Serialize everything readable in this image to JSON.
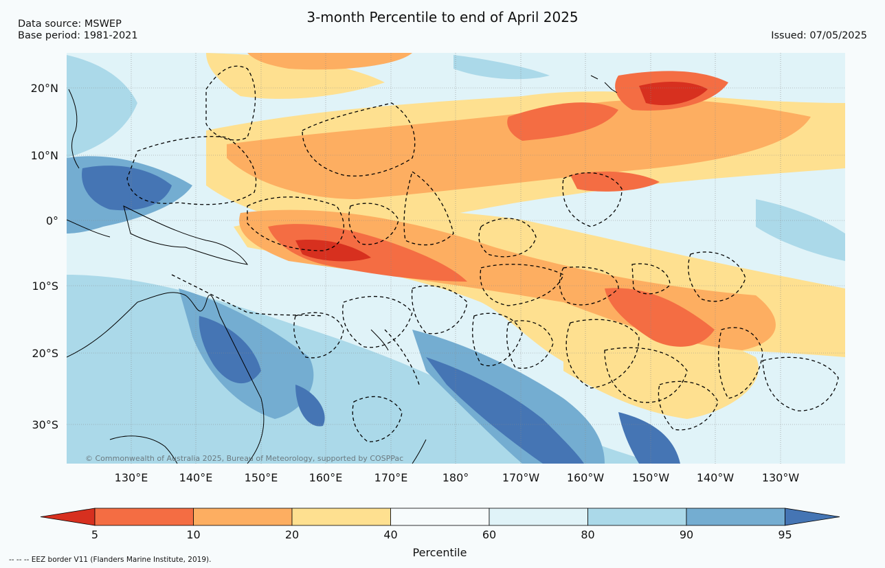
{
  "title": "3-month Percentile to end of April 2025",
  "meta": {
    "data_source": "Data source: MSWEP",
    "base_period": "Base period: 1981-2021",
    "issued": "Issued: 07/05/2025"
  },
  "map": {
    "region": "Western and central Pacific Ocean",
    "lat_labels": [
      "20°N",
      "10°N",
      "0°",
      "10°S",
      "20°S",
      "30°S"
    ],
    "lon_labels": [
      "130°E",
      "140°E",
      "150°E",
      "160°E",
      "170°E",
      "180°",
      "170°W",
      "160°W",
      "150°W",
      "140°W",
      "130°W"
    ],
    "copyright": "© Commonwealth of Australia 2025, Bureau of Meteorology, supported by COSPPac"
  },
  "colorbar": {
    "title": "Percentile",
    "ticks": [
      "5",
      "10",
      "20",
      "40",
      "60",
      "80",
      "90",
      "95"
    ],
    "colors": {
      "lt5": "#d7301f",
      "b5_10": "#f46d43",
      "b10_20": "#fdae61",
      "b20_40": "#fee090",
      "b40_60": "#f7fbfc",
      "b60_80": "#e0f3f8",
      "b80_90": "#abd9e9",
      "b90_95": "#74add1",
      "gt95": "#4575b4"
    }
  },
  "footer": "-- -- -- EEZ border V11 (Flanders Marine Institute, 2019)."
}
